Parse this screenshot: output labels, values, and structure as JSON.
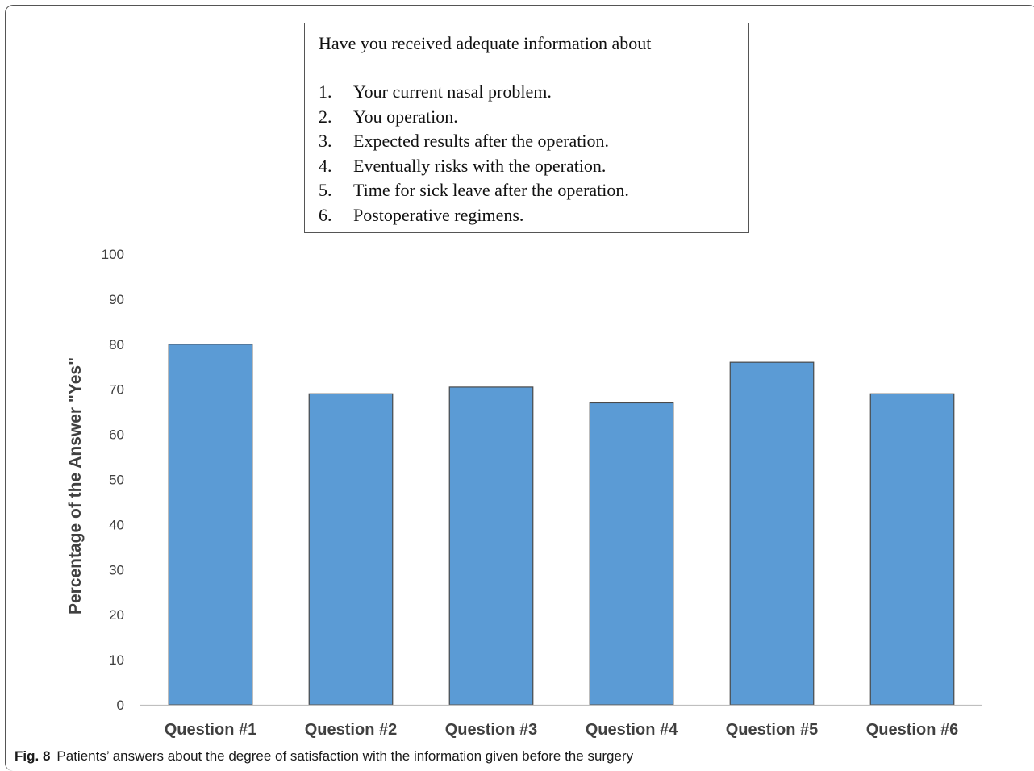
{
  "info_box": {
    "heading": "Have you received adequate information about",
    "items": [
      {
        "num": "1.",
        "text": "Your current nasal problem."
      },
      {
        "num": "2.",
        "text": "You operation."
      },
      {
        "num": "3.",
        "text": "Expected results after the operation."
      },
      {
        "num": "4.",
        "text": "Eventually risks with the operation."
      },
      {
        "num": "5.",
        "text": "Time for sick leave after the operation."
      },
      {
        "num": "6.",
        "text": "Postoperative regimens."
      }
    ]
  },
  "caption": {
    "label": "Fig. 8",
    "text": "Patients’ answers about the degree of satisfaction with the information given before the surgery"
  },
  "chart_data": {
    "type": "bar",
    "title": "",
    "xlabel": "",
    "ylabel": "Percentage of the Answer \"Yes\"",
    "categories": [
      "Question #1",
      "Question #2",
      "Question #3",
      "Question #4",
      "Question #5",
      "Question #6"
    ],
    "values": [
      80,
      69,
      70.5,
      67,
      76,
      69
    ],
    "ylim": [
      0,
      100
    ],
    "yticks": [
      0,
      10,
      20,
      30,
      40,
      50,
      60,
      70,
      80,
      90,
      100
    ],
    "grid": false,
    "legend": "none",
    "bar_color": "#5b9bd5",
    "bar_edge_color": "#4a4a4a"
  }
}
